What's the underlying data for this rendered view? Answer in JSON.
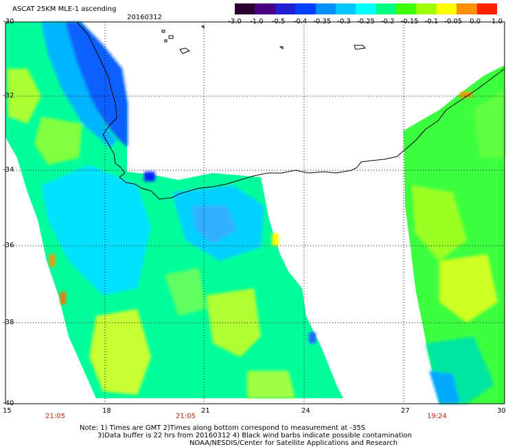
{
  "title": "ASCAT 25KM MLE-1 ascending",
  "date": "20160312",
  "colorbar": {
    "labels": [
      "-3.0",
      "-1.0",
      "-0.5",
      "-0.4",
      "-0.35",
      "-0.3",
      "-0.25",
      "-0.2",
      "-0.15",
      "-0.1",
      "-0.05",
      "0.0",
      "1.0"
    ],
    "colors": [
      "#2a0030",
      "#4b0082",
      "#2020d0",
      "#0040ff",
      "#0090ff",
      "#00c8ff",
      "#00ffff",
      "#00ff80",
      "#40ff00",
      "#a0ff00",
      "#ffff00",
      "#ff9000",
      "#ff2000"
    ]
  },
  "axes": {
    "y_labels": [
      "-30",
      "-32",
      "-34",
      "-36",
      "-38",
      "-40"
    ],
    "x_labels": [
      "15",
      "18",
      "21",
      "24",
      "27",
      "30"
    ],
    "times": [
      "21:05",
      "21:05",
      "19:24"
    ]
  },
  "notes": {
    "line1": "Note: 1) Times are GMT 2)Times along bottom correspond to measurement at -35S",
    "line2": "3)Data buffer is 22 hrs from 20160312 4) Black wind barbs indicate possible contamination",
    "line3": "NOAA/NESDIS/Center for Satellite Applications and Research"
  }
}
